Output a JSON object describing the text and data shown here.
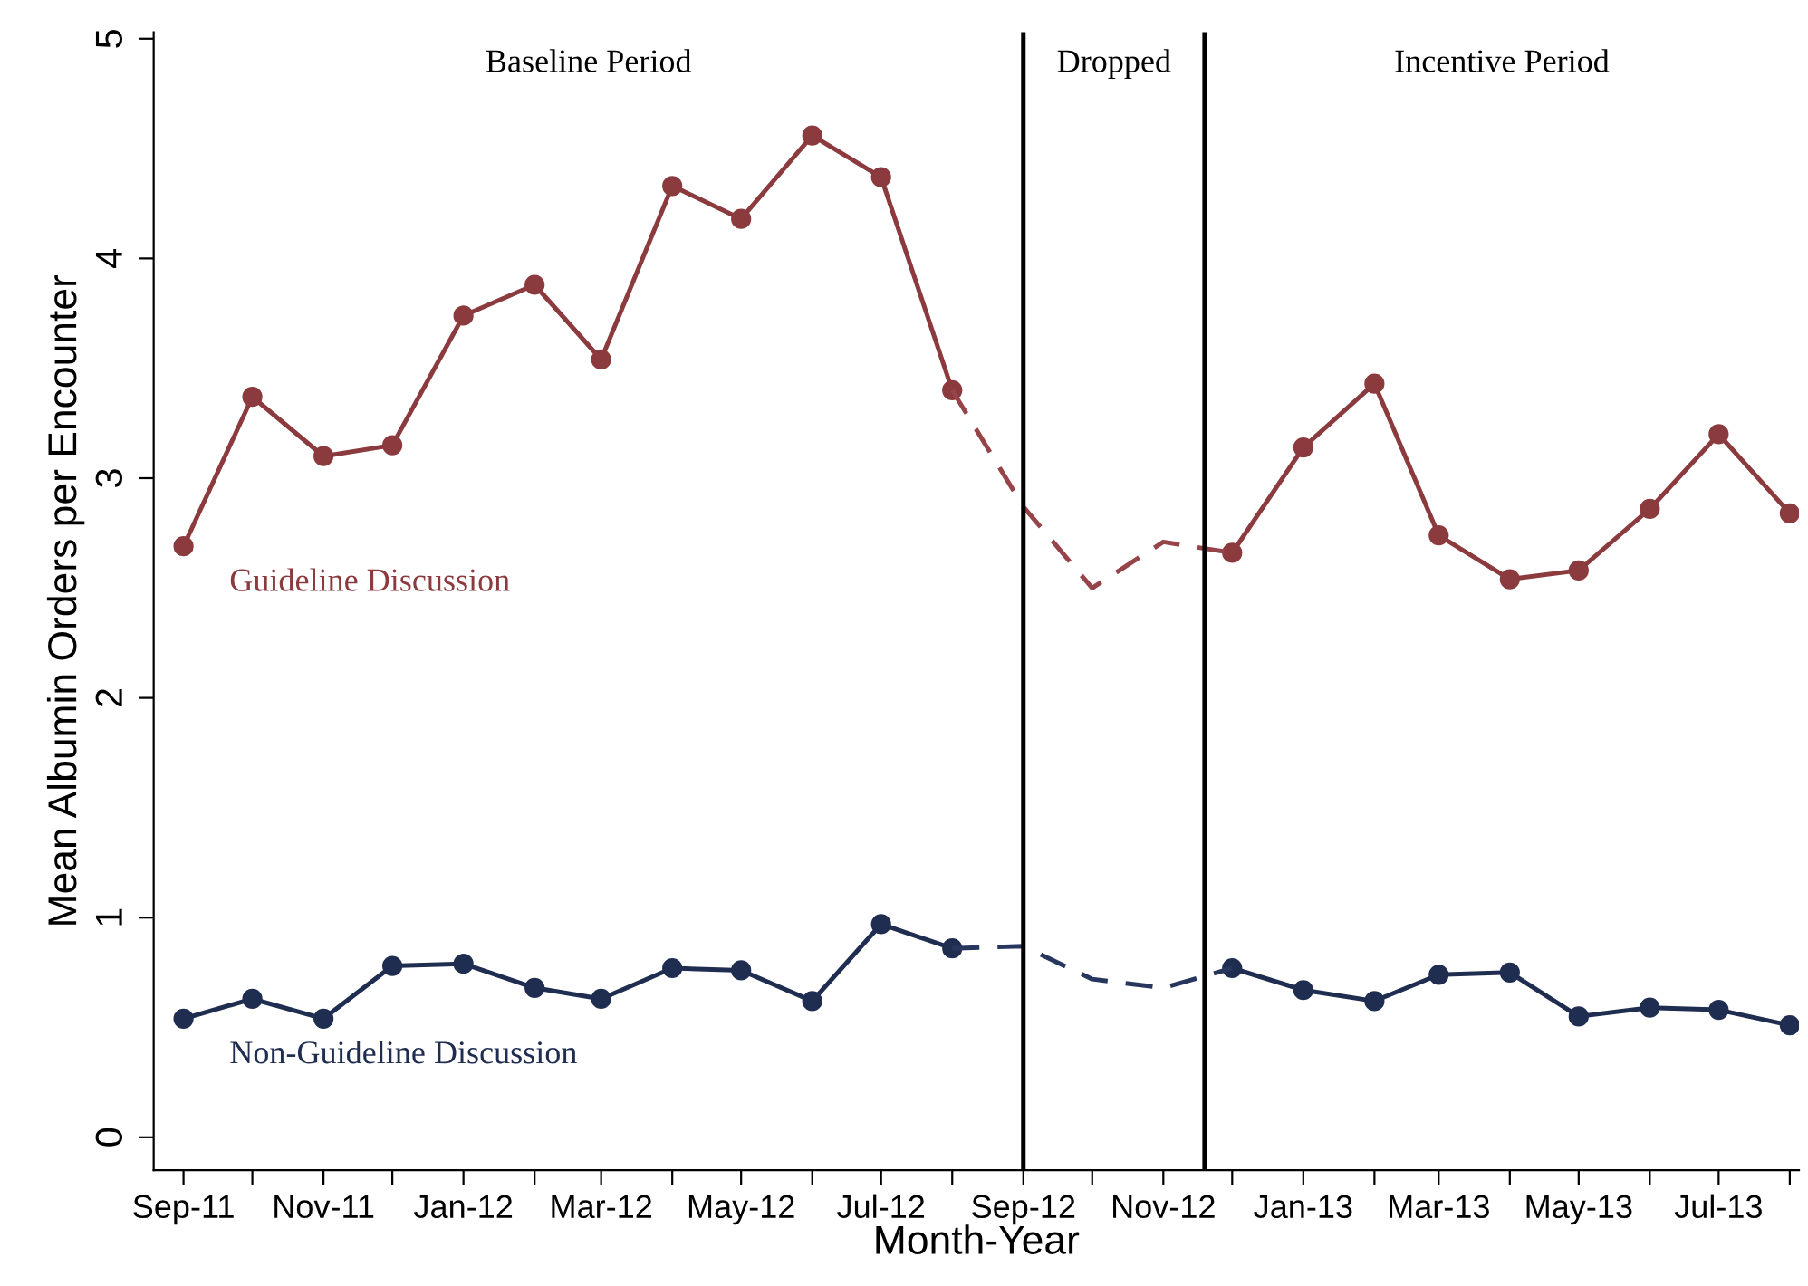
{
  "chart_data": {
    "type": "line",
    "xlabel": "Month-Year",
    "ylabel": "Mean Albumin Orders per Encounter",
    "x": [
      "2011-09",
      "2011-10",
      "2011-11",
      "2011-12",
      "2012-01",
      "2012-02",
      "2012-03",
      "2012-04",
      "2012-05",
      "2012-06",
      "2012-07",
      "2012-08",
      "2012-09",
      "2012-10",
      "2012-11",
      "2012-12",
      "2013-01",
      "2013-02",
      "2013-03",
      "2013-04",
      "2013-05",
      "2013-06",
      "2013-07",
      "2013-08"
    ],
    "series": [
      {
        "name": "Guideline Discussion",
        "color": "#8b3a3e",
        "marker": "circle",
        "line_style": "solid",
        "values": [
          2.69,
          3.37,
          3.1,
          3.15,
          3.74,
          3.88,
          3.54,
          4.33,
          4.18,
          4.56,
          4.37,
          3.4,
          null,
          null,
          null,
          2.66,
          3.14,
          3.43,
          2.74,
          2.54,
          2.58,
          2.86,
          3.2,
          2.84
        ]
      },
      {
        "color": "#96444a",
        "marker": "none",
        "line_style": "dashed",
        "values": [
          null,
          null,
          null,
          null,
          null,
          null,
          null,
          null,
          null,
          null,
          null,
          3.4,
          2.87,
          2.5,
          2.71,
          2.66,
          null,
          null,
          null,
          null,
          null,
          null,
          null,
          null
        ]
      },
      {
        "name": "Non-Guideline Discussion",
        "color": "#1f2d50",
        "marker": "circle",
        "line_style": "solid",
        "values": [
          0.54,
          0.63,
          0.54,
          0.78,
          0.79,
          0.68,
          0.63,
          0.77,
          0.76,
          0.62,
          0.97,
          0.86,
          null,
          null,
          null,
          0.77,
          0.67,
          0.62,
          0.74,
          0.75,
          0.55,
          0.59,
          0.58,
          0.51
        ]
      },
      {
        "color": "#26365e",
        "marker": "none",
        "line_style": "dashed",
        "values": [
          null,
          null,
          null,
          null,
          null,
          null,
          null,
          null,
          null,
          null,
          null,
          0.86,
          0.87,
          0.72,
          0.68,
          0.77,
          null,
          null,
          null,
          null,
          null,
          null,
          null,
          null
        ]
      }
    ],
    "xlim": [
      "2011-08-19",
      "2013-08-05"
    ],
    "xticks": [
      {
        "value": "2011-09",
        "label": "Sep-11"
      },
      {
        "value": "2011-10",
        "label": null
      },
      {
        "value": "2011-11",
        "label": "Nov-11"
      },
      {
        "value": "2011-12",
        "label": null
      },
      {
        "value": "2012-01",
        "label": "Jan-12"
      },
      {
        "value": "2012-02",
        "label": null
      },
      {
        "value": "2012-03",
        "label": "Mar-12"
      },
      {
        "value": "2012-04",
        "label": null
      },
      {
        "value": "2012-05",
        "label": "May-12"
      },
      {
        "value": "2012-06",
        "label": null
      },
      {
        "value": "2012-07",
        "label": "Jul-12"
      },
      {
        "value": "2012-08",
        "label": null
      },
      {
        "value": "2012-09",
        "label": "Sep-12"
      },
      {
        "value": "2012-10",
        "label": null
      },
      {
        "value": "2012-11",
        "label": "Nov-12"
      },
      {
        "value": "2012-12",
        "label": null
      },
      {
        "value": "2013-01",
        "label": "Jan-13"
      },
      {
        "value": "2013-02",
        "label": null
      },
      {
        "value": "2013-03",
        "label": "Mar-13"
      },
      {
        "value": "2013-04",
        "label": null
      },
      {
        "value": "2013-05",
        "label": "May-13"
      },
      {
        "value": "2013-06",
        "label": null
      },
      {
        "value": "2013-07",
        "label": "Jul-13"
      },
      {
        "value": "2013-08",
        "label": null
      }
    ],
    "ylim": [
      -0.15,
      5.03
    ],
    "yticks": [
      0,
      1,
      2,
      3,
      4,
      5
    ],
    "grid": false,
    "legend": false,
    "ref_lines": [
      {
        "axis": "x",
        "value": "2012-09",
        "color": "#000000",
        "line_style": "solid"
      },
      {
        "axis": "x",
        "value": "2012-11-19",
        "color": "#000000",
        "line_style": "solid"
      }
    ],
    "annotations": [
      "Baseline Period",
      "Dropped",
      "Incentive Period"
    ]
  }
}
